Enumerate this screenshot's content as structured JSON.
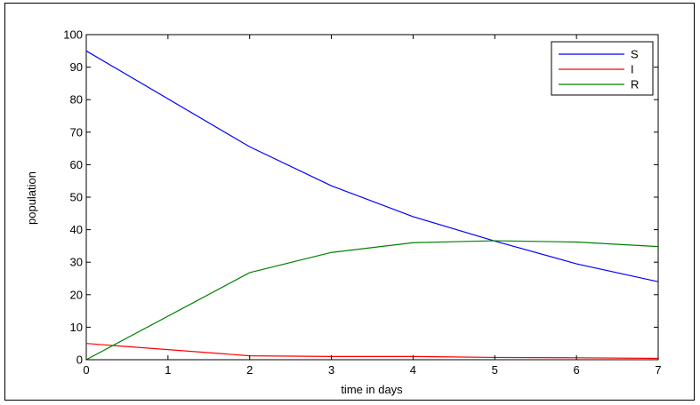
{
  "chart_data": {
    "type": "line",
    "xlabel": "time in days",
    "ylabel": "population",
    "xlim": [
      0,
      7
    ],
    "ylim": [
      0,
      100
    ],
    "xticks": [
      "0",
      "1",
      "2",
      "3",
      "4",
      "5",
      "6",
      "7"
    ],
    "yticks": [
      "0",
      "10",
      "20",
      "30",
      "40",
      "50",
      "60",
      "70",
      "80",
      "90",
      "100"
    ],
    "grid": false,
    "legend_position": "top-right",
    "x": [
      0,
      2,
      3,
      4,
      5,
      6,
      7
    ],
    "series": [
      {
        "name": "S",
        "color": "#0000ff",
        "values": [
          95,
          65.5,
          53.5,
          44,
          36.5,
          29.5,
          24
        ]
      },
      {
        "name": "I",
        "color": "#ff0000",
        "values": [
          5,
          1.2,
          1.0,
          1.0,
          0.7,
          0.6,
          0.4
        ]
      },
      {
        "name": "R",
        "color": "#008000",
        "values": [
          0,
          26.8,
          33,
          36,
          36.6,
          36.2,
          34.8
        ]
      }
    ]
  }
}
